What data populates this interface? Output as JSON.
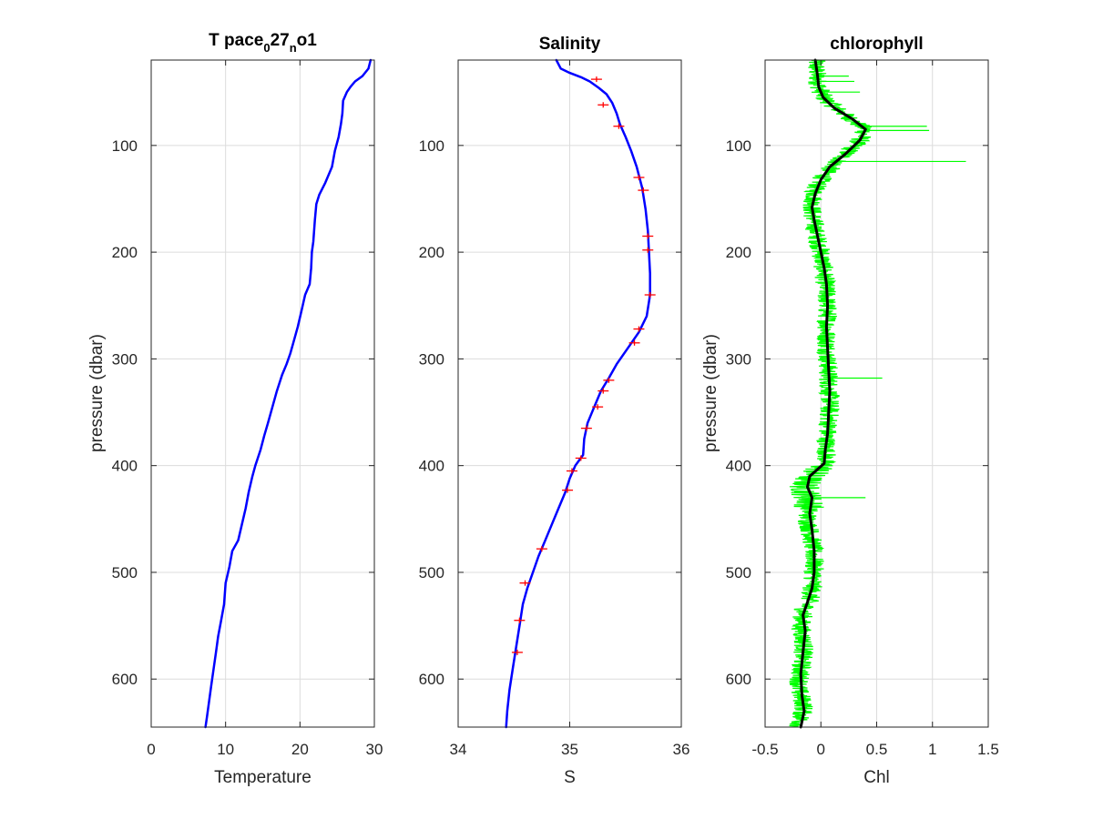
{
  "chart_data": [
    {
      "type": "line",
      "title": "T pace",
      "title_parts": {
        "main": "T pace",
        "sub1": "0",
        "mid": "27",
        "sub2": "n",
        "tail": "o1"
      },
      "xlabel": "Temperature",
      "ylabel": "pressure (dbar)",
      "xlim": [
        0,
        30
      ],
      "ylim": [
        20,
        645
      ],
      "y_reversed": true,
      "xticks": [
        0,
        10,
        20,
        30
      ],
      "xtick_labels": [
        "0",
        "10",
        "20",
        "30"
      ],
      "yticks": [
        100,
        200,
        300,
        400,
        500,
        600
      ],
      "ytick_labels": [
        "100",
        "200",
        "300",
        "400",
        "500",
        "600"
      ],
      "grid": true,
      "series": [
        {
          "color": "#0000ff",
          "points": [
            [
              29.5,
              20
            ],
            [
              29.2,
              28
            ],
            [
              28.4,
              35
            ],
            [
              27.4,
              40
            ],
            [
              26.8,
              45
            ],
            [
              26.3,
              50
            ],
            [
              25.8,
              58
            ],
            [
              25.7,
              70
            ],
            [
              25.5,
              80
            ],
            [
              25.2,
              92
            ],
            [
              24.7,
              105
            ],
            [
              24.3,
              120
            ],
            [
              23.4,
              135
            ],
            [
              22.6,
              146
            ],
            [
              22.2,
              155
            ],
            [
              22.0,
              170
            ],
            [
              21.8,
              190
            ],
            [
              21.6,
              200
            ],
            [
              21.5,
              215
            ],
            [
              21.3,
              230
            ],
            [
              20.7,
              240
            ],
            [
              20.2,
              255
            ],
            [
              19.7,
              270
            ],
            [
              19.1,
              285
            ],
            [
              18.7,
              295
            ],
            [
              18.2,
              305
            ],
            [
              17.6,
              315
            ],
            [
              16.9,
              330
            ],
            [
              16.3,
              345
            ],
            [
              15.7,
              360
            ],
            [
              15.2,
              372
            ],
            [
              14.7,
              385
            ],
            [
              14.0,
              400
            ],
            [
              13.6,
              410
            ],
            [
              13.1,
              425
            ],
            [
              12.7,
              440
            ],
            [
              12.2,
              455
            ],
            [
              11.7,
              470
            ],
            [
              10.9,
              480
            ],
            [
              10.5,
              495
            ],
            [
              10.0,
              510
            ],
            [
              9.8,
              530
            ],
            [
              9.4,
              545
            ],
            [
              9.0,
              560
            ],
            [
              8.7,
              575
            ],
            [
              8.4,
              590
            ],
            [
              8.1,
              605
            ],
            [
              7.8,
              620
            ],
            [
              7.5,
              635
            ],
            [
              7.3,
              645
            ]
          ]
        }
      ]
    },
    {
      "type": "line",
      "title": "Salinity",
      "xlabel": "S",
      "ylabel": "",
      "xlim": [
        34,
        36
      ],
      "ylim": [
        20,
        645
      ],
      "y_reversed": true,
      "xticks": [
        34,
        35,
        36
      ],
      "xtick_labels": [
        "34",
        "35",
        "36"
      ],
      "yticks": [
        100,
        200,
        300,
        400,
        500,
        600
      ],
      "ytick_labels": [
        "100",
        "200",
        "300",
        "400",
        "500",
        "600"
      ],
      "grid": true,
      "series": [
        {
          "color": "#0000ff",
          "points": [
            [
              34.88,
              20
            ],
            [
              34.92,
              28
            ],
            [
              35.0,
              32
            ],
            [
              35.1,
              36
            ],
            [
              35.18,
              40
            ],
            [
              35.26,
              46
            ],
            [
              35.33,
              52
            ],
            [
              35.38,
              60
            ],
            [
              35.42,
              70
            ],
            [
              35.45,
              80
            ],
            [
              35.5,
              92
            ],
            [
              35.55,
              105
            ],
            [
              35.6,
              120
            ],
            [
              35.65,
              140
            ],
            [
              35.68,
              160
            ],
            [
              35.7,
              180
            ],
            [
              35.71,
              200
            ],
            [
              35.72,
              220
            ],
            [
              35.72,
              240
            ],
            [
              35.69,
              260
            ],
            [
              35.62,
              275
            ],
            [
              35.52,
              290
            ],
            [
              35.42,
              305
            ],
            [
              35.35,
              318
            ],
            [
              35.28,
              330
            ],
            [
              35.22,
              345
            ],
            [
              35.16,
              360
            ],
            [
              35.13,
              375
            ],
            [
              35.12,
              390
            ],
            [
              35.05,
              400
            ],
            [
              35.0,
              412
            ],
            [
              34.96,
              425
            ],
            [
              34.9,
              440
            ],
            [
              34.84,
              455
            ],
            [
              34.78,
              470
            ],
            [
              34.72,
              485
            ],
            [
              34.67,
              500
            ],
            [
              34.62,
              515
            ],
            [
              34.58,
              530
            ],
            [
              34.55,
              550
            ],
            [
              34.52,
              570
            ],
            [
              34.49,
              590
            ],
            [
              34.46,
              610
            ],
            [
              34.44,
              630
            ],
            [
              34.43,
              645
            ]
          ]
        },
        {
          "name": "",
          "color": "#ff0000",
          "type": "error-marks",
          "points": [
            [
              35.24,
              38
            ],
            [
              35.3,
              62
            ],
            [
              35.44,
              82
            ],
            [
              35.62,
              130
            ],
            [
              35.66,
              142
            ],
            [
              35.7,
              185
            ],
            [
              35.7,
              198
            ],
            [
              35.72,
              240
            ],
            [
              35.62,
              272
            ],
            [
              35.58,
              285
            ],
            [
              35.35,
              320
            ],
            [
              35.3,
              330
            ],
            [
              35.25,
              345
            ],
            [
              35.15,
              365
            ],
            [
              35.1,
              393
            ],
            [
              35.02,
              405
            ],
            [
              34.98,
              423
            ],
            [
              34.75,
              478
            ],
            [
              34.6,
              510
            ],
            [
              34.55,
              545
            ],
            [
              34.53,
              575
            ]
          ]
        }
      ]
    },
    {
      "type": "line",
      "title": "chlorophyll",
      "xlabel": "Chl",
      "ylabel": "pressure (dbar)",
      "xlim": [
        -0.5,
        1.5
      ],
      "ylim": [
        20,
        645
      ],
      "y_reversed": true,
      "xticks": [
        -0.5,
        0,
        0.5,
        1,
        1.5
      ],
      "xtick_labels": [
        "-0.5",
        "0",
        "0.5",
        "1",
        "1.5"
      ],
      "yticks": [
        100,
        200,
        300,
        400,
        500,
        600
      ],
      "ytick_labels": [
        "100",
        "200",
        "300",
        "400",
        "500",
        "600"
      ],
      "grid": true,
      "series": [
        {
          "color": "#00ff00",
          "type": "raw-noisy",
          "points": [
            [
              -0.05,
              20
            ],
            [
              -0.03,
              40
            ],
            [
              0.02,
              55
            ],
            [
              0.2,
              70
            ],
            [
              0.4,
              85
            ],
            [
              0.35,
              95
            ],
            [
              0.2,
              110
            ],
            [
              0.05,
              125
            ],
            [
              -0.05,
              140
            ],
            [
              -0.08,
              160
            ],
            [
              -0.05,
              180
            ],
            [
              0.0,
              200
            ],
            [
              0.03,
              220
            ],
            [
              0.05,
              240
            ],
            [
              0.06,
              260
            ],
            [
              0.05,
              280
            ],
            [
              0.06,
              300
            ],
            [
              0.07,
              320
            ],
            [
              0.08,
              340
            ],
            [
              0.07,
              360
            ],
            [
              0.05,
              375
            ],
            [
              0.05,
              390
            ],
            [
              0.03,
              400
            ],
            [
              -0.1,
              410
            ],
            [
              -0.15,
              420
            ],
            [
              -0.1,
              435
            ],
            [
              -0.12,
              450
            ],
            [
              -0.08,
              470
            ],
            [
              -0.06,
              490
            ],
            [
              -0.07,
              510
            ],
            [
              -0.1,
              525
            ],
            [
              -0.15,
              535
            ],
            [
              -0.18,
              550
            ],
            [
              -0.15,
              570
            ],
            [
              -0.18,
              590
            ],
            [
              -0.2,
              610
            ],
            [
              -0.15,
              625
            ],
            [
              -0.2,
              645
            ]
          ],
          "spikes": [
            [
              0.95,
              82
            ],
            [
              0.97,
              86
            ],
            [
              1.3,
              115
            ],
            [
              0.55,
              318
            ],
            [
              0.4,
              430
            ],
            [
              0.3,
              40
            ],
            [
              0.35,
              50
            ],
            [
              0.25,
              35
            ]
          ]
        },
        {
          "color": "#000000",
          "type": "smoothed",
          "points": [
            [
              -0.05,
              20
            ],
            [
              -0.03,
              35
            ],
            [
              -0.02,
              45
            ],
            [
              0.02,
              55
            ],
            [
              0.12,
              65
            ],
            [
              0.28,
              75
            ],
            [
              0.4,
              85
            ],
            [
              0.35,
              95
            ],
            [
              0.22,
              108
            ],
            [
              0.08,
              120
            ],
            [
              0.0,
              132
            ],
            [
              -0.05,
              145
            ],
            [
              -0.08,
              158
            ],
            [
              -0.06,
              170
            ],
            [
              -0.03,
              185
            ],
            [
              0.0,
              200
            ],
            [
              0.03,
              215
            ],
            [
              0.05,
              230
            ],
            [
              0.06,
              250
            ],
            [
              0.05,
              270
            ],
            [
              0.06,
              290
            ],
            [
              0.07,
              310
            ],
            [
              0.08,
              330
            ],
            [
              0.07,
              350
            ],
            [
              0.06,
              370
            ],
            [
              0.04,
              385
            ],
            [
              0.03,
              398
            ],
            [
              -0.1,
              410
            ],
            [
              -0.12,
              420
            ],
            [
              -0.08,
              430
            ],
            [
              -0.1,
              445
            ],
            [
              -0.08,
              460
            ],
            [
              -0.06,
              480
            ],
            [
              -0.06,
              500
            ],
            [
              -0.08,
              515
            ],
            [
              -0.12,
              528
            ],
            [
              -0.16,
              540
            ],
            [
              -0.14,
              555
            ],
            [
              -0.16,
              575
            ],
            [
              -0.18,
              595
            ],
            [
              -0.17,
              615
            ],
            [
              -0.15,
              630
            ],
            [
              -0.18,
              645
            ]
          ]
        }
      ]
    }
  ]
}
